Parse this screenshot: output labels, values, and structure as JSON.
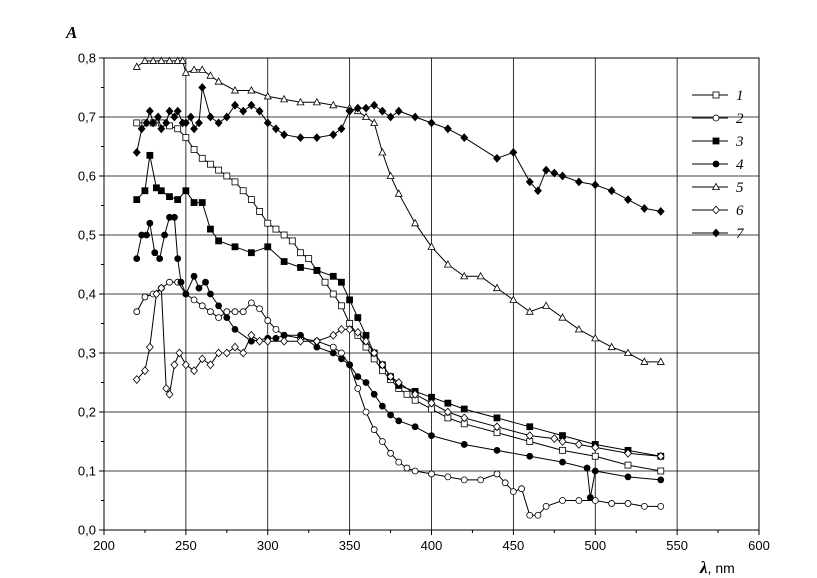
{
  "chart_data": {
    "type": "line",
    "ylabel": "A",
    "xlabel": "λ",
    "xunit": ", nm",
    "xlim": [
      200,
      600
    ],
    "ylim": [
      0.0,
      0.8
    ],
    "xticks": [
      "200",
      "250",
      "300",
      "350",
      "400",
      "450",
      "500",
      "550",
      "600"
    ],
    "yticks": [
      "0,0",
      "0,1",
      "0,2",
      "0,3",
      "0,4",
      "0,5",
      "0,6",
      "0,7",
      "0,8"
    ],
    "grid": true,
    "legend_position": "right",
    "series": [
      {
        "name": "1",
        "marker": "square-open",
        "x": [
          220,
          225,
          230,
          235,
          240,
          245,
          250,
          255,
          260,
          265,
          270,
          275,
          280,
          285,
          290,
          295,
          300,
          305,
          310,
          315,
          320,
          325,
          330,
          335,
          340,
          345,
          350,
          355,
          360,
          365,
          370,
          375,
          380,
          385,
          390,
          400,
          410,
          420,
          440,
          460,
          480,
          500,
          520,
          540
        ],
        "y": [
          0.69,
          0.69,
          0.69,
          0.69,
          0.685,
          0.68,
          0.665,
          0.645,
          0.63,
          0.62,
          0.61,
          0.6,
          0.59,
          0.575,
          0.56,
          0.54,
          0.52,
          0.51,
          0.5,
          0.49,
          0.47,
          0.46,
          0.44,
          0.42,
          0.4,
          0.38,
          0.35,
          0.33,
          0.31,
          0.29,
          0.27,
          0.255,
          0.24,
          0.23,
          0.22,
          0.205,
          0.19,
          0.18,
          0.165,
          0.15,
          0.135,
          0.125,
          0.11,
          0.1
        ]
      },
      {
        "name": "2",
        "marker": "circle-open",
        "x": [
          220,
          225,
          230,
          235,
          240,
          245,
          250,
          255,
          260,
          265,
          270,
          275,
          280,
          285,
          290,
          295,
          300,
          305,
          310,
          320,
          330,
          340,
          345,
          350,
          355,
          360,
          365,
          370,
          375,
          380,
          385,
          390,
          400,
          410,
          420,
          430,
          440,
          445,
          450,
          455,
          460,
          465,
          470,
          480,
          490,
          500,
          510,
          520,
          530,
          540
        ],
        "y": [
          0.37,
          0.395,
          0.4,
          0.41,
          0.42,
          0.42,
          0.4,
          0.39,
          0.38,
          0.37,
          0.36,
          0.37,
          0.37,
          0.37,
          0.385,
          0.375,
          0.355,
          0.34,
          0.33,
          0.325,
          0.32,
          0.31,
          0.3,
          0.28,
          0.24,
          0.2,
          0.17,
          0.15,
          0.13,
          0.115,
          0.105,
          0.1,
          0.095,
          0.09,
          0.085,
          0.085,
          0.095,
          0.08,
          0.065,
          0.07,
          0.025,
          0.025,
          0.04,
          0.05,
          0.05,
          0.05,
          0.045,
          0.045,
          0.04,
          0.04
        ]
      },
      {
        "name": "3",
        "marker": "square-filled",
        "x": [
          220,
          225,
          228,
          232,
          235,
          240,
          245,
          250,
          255,
          260,
          265,
          270,
          280,
          290,
          300,
          310,
          320,
          330,
          340,
          345,
          350,
          355,
          360,
          365,
          370,
          375,
          380,
          390,
          400,
          410,
          420,
          440,
          460,
          480,
          500,
          520,
          540
        ],
        "y": [
          0.56,
          0.575,
          0.635,
          0.58,
          0.575,
          0.565,
          0.56,
          0.575,
          0.555,
          0.555,
          0.51,
          0.49,
          0.48,
          0.47,
          0.48,
          0.455,
          0.445,
          0.44,
          0.43,
          0.42,
          0.39,
          0.36,
          0.33,
          0.3,
          0.28,
          0.26,
          0.245,
          0.235,
          0.225,
          0.215,
          0.205,
          0.19,
          0.175,
          0.16,
          0.145,
          0.135,
          0.125
        ]
      },
      {
        "name": "4",
        "marker": "circle-filled",
        "x": [
          220,
          223,
          226,
          228,
          231,
          234,
          237,
          240,
          243,
          245,
          247,
          250,
          255,
          258,
          262,
          265,
          270,
          275,
          280,
          290,
          300,
          305,
          310,
          320,
          330,
          340,
          345,
          350,
          355,
          360,
          365,
          370,
          375,
          380,
          390,
          400,
          420,
          440,
          460,
          480,
          495,
          497,
          500,
          520,
          540
        ],
        "y": [
          0.46,
          0.5,
          0.5,
          0.52,
          0.47,
          0.46,
          0.5,
          0.53,
          0.53,
          0.46,
          0.42,
          0.4,
          0.43,
          0.41,
          0.42,
          0.4,
          0.38,
          0.36,
          0.34,
          0.32,
          0.325,
          0.325,
          0.33,
          0.33,
          0.31,
          0.3,
          0.29,
          0.28,
          0.26,
          0.25,
          0.23,
          0.21,
          0.195,
          0.185,
          0.175,
          0.16,
          0.145,
          0.135,
          0.125,
          0.115,
          0.105,
          0.055,
          0.1,
          0.09,
          0.085
        ]
      },
      {
        "name": "5",
        "marker": "triangle-open",
        "x": [
          220,
          225,
          230,
          235,
          240,
          245,
          248,
          250,
          255,
          260,
          265,
          270,
          280,
          290,
          300,
          310,
          320,
          330,
          340,
          350,
          355,
          360,
          365,
          370,
          375,
          380,
          390,
          400,
          410,
          420,
          430,
          440,
          450,
          460,
          470,
          480,
          490,
          500,
          510,
          520,
          530,
          540
        ],
        "y": [
          0.785,
          0.795,
          0.795,
          0.795,
          0.795,
          0.795,
          0.795,
          0.775,
          0.78,
          0.78,
          0.77,
          0.76,
          0.745,
          0.745,
          0.735,
          0.73,
          0.725,
          0.725,
          0.72,
          0.715,
          0.71,
          0.7,
          0.69,
          0.64,
          0.6,
          0.57,
          0.52,
          0.48,
          0.45,
          0.43,
          0.43,
          0.41,
          0.39,
          0.37,
          0.38,
          0.36,
          0.34,
          0.325,
          0.31,
          0.3,
          0.285,
          0.285
        ]
      },
      {
        "name": "6",
        "marker": "diamond-open",
        "x": [
          220,
          225,
          228,
          232,
          235,
          238,
          240,
          243,
          246,
          250,
          255,
          260,
          265,
          270,
          275,
          280,
          285,
          290,
          295,
          300,
          310,
          320,
          330,
          340,
          345,
          350,
          355,
          360,
          365,
          370,
          375,
          380,
          390,
          400,
          410,
          420,
          440,
          460,
          475,
          480,
          490,
          500,
          520,
          540
        ],
        "y": [
          0.255,
          0.27,
          0.31,
          0.4,
          0.41,
          0.24,
          0.23,
          0.28,
          0.3,
          0.28,
          0.27,
          0.29,
          0.28,
          0.3,
          0.3,
          0.31,
          0.3,
          0.33,
          0.32,
          0.32,
          0.32,
          0.32,
          0.32,
          0.33,
          0.34,
          0.34,
          0.335,
          0.32,
          0.3,
          0.28,
          0.26,
          0.25,
          0.23,
          0.215,
          0.2,
          0.19,
          0.175,
          0.16,
          0.155,
          0.15,
          0.145,
          0.14,
          0.13,
          0.125
        ]
      },
      {
        "name": "7",
        "marker": "diamond-filled",
        "x": [
          220,
          223,
          226,
          228,
          230,
          233,
          235,
          238,
          240,
          243,
          245,
          248,
          250,
          253,
          255,
          258,
          260,
          265,
          270,
          275,
          280,
          285,
          290,
          295,
          300,
          305,
          310,
          320,
          330,
          340,
          345,
          350,
          355,
          360,
          365,
          370,
          375,
          380,
          390,
          400,
          410,
          420,
          440,
          450,
          460,
          465,
          470,
          475,
          480,
          490,
          500,
          510,
          520,
          530,
          540
        ],
        "y": [
          0.64,
          0.68,
          0.69,
          0.71,
          0.69,
          0.7,
          0.68,
          0.69,
          0.71,
          0.7,
          0.71,
          0.69,
          0.69,
          0.7,
          0.68,
          0.69,
          0.75,
          0.7,
          0.69,
          0.7,
          0.72,
          0.71,
          0.72,
          0.71,
          0.69,
          0.68,
          0.67,
          0.665,
          0.665,
          0.67,
          0.68,
          0.71,
          0.715,
          0.715,
          0.72,
          0.71,
          0.7,
          0.71,
          0.7,
          0.69,
          0.68,
          0.665,
          0.63,
          0.64,
          0.59,
          0.575,
          0.61,
          0.605,
          0.6,
          0.59,
          0.585,
          0.575,
          0.56,
          0.545,
          0.54
        ]
      }
    ]
  }
}
